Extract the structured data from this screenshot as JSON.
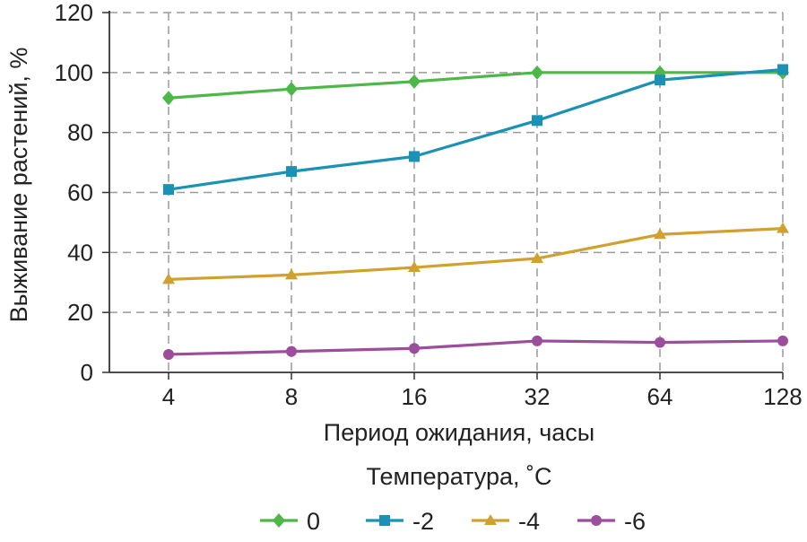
{
  "chart_data": {
    "type": "line",
    "x": [
      4,
      8,
      16,
      32,
      64,
      128
    ],
    "x_tick_labels": [
      "4",
      "8",
      "16",
      "32",
      "64",
      "128"
    ],
    "x_scale": "log2",
    "xlabel": "Период ожидания, часы",
    "ylabel": "Выживание растений, %",
    "ylim": [
      0,
      120
    ],
    "y_ticks": [
      0,
      20,
      40,
      60,
      80,
      100,
      120
    ],
    "grid": "dashed",
    "legend": {
      "title": "Температура, ˚С",
      "placement": "bottom"
    },
    "series": [
      {
        "name": "0",
        "color": "#4cb848",
        "marker": "diamond",
        "values": [
          91.5,
          94.5,
          97,
          100,
          100,
          100
        ]
      },
      {
        "name": "-2",
        "color": "#1b91b5",
        "marker": "square",
        "values": [
          61,
          67,
          72,
          84,
          97.5,
          101
        ]
      },
      {
        "name": "-4",
        "color": "#d1a12f",
        "marker": "triangle",
        "values": [
          31,
          32.5,
          35,
          38,
          46,
          48
        ]
      },
      {
        "name": "-6",
        "color": "#9c4d9c",
        "marker": "circle",
        "values": [
          6,
          7,
          8,
          10.5,
          10,
          10.5
        ]
      }
    ]
  }
}
